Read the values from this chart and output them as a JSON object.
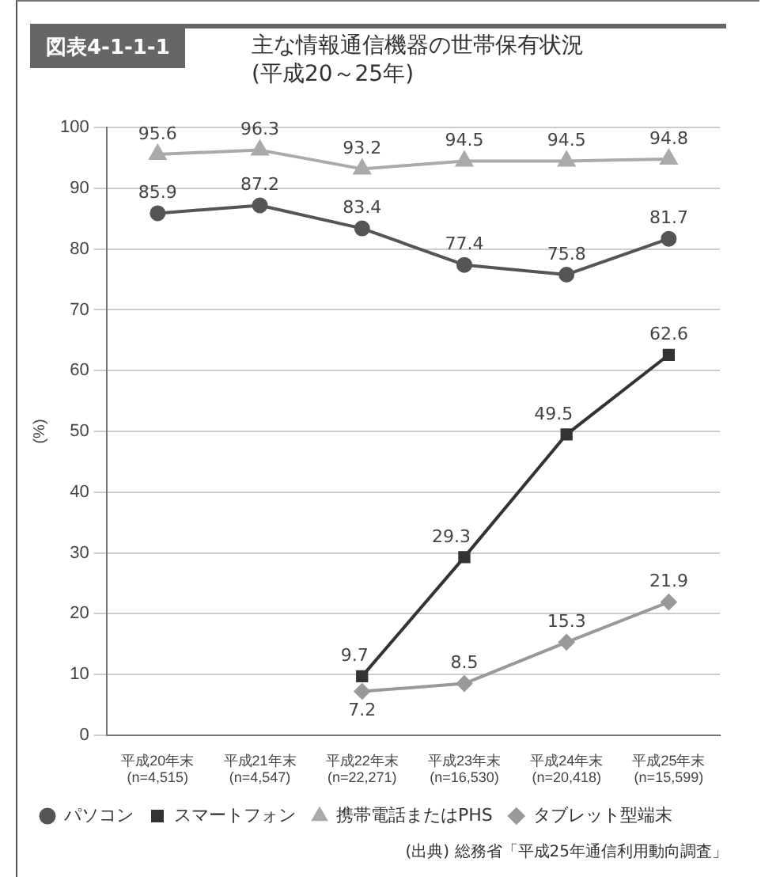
{
  "chart_data": {
    "type": "line",
    "title": "主な情報通信機器の世帯保有状況",
    "subtitle": "(平成20～25年)",
    "ylabel": "(%)",
    "annotations": [
      "図表4-1-1-1",
      "(出典) 総務省「平成25年通信利用動向調査」"
    ],
    "categories": [
      "平成20年末\n(n=4,515)",
      "平成21年末\n(n=4,547)",
      "平成22年末\n(n=22,271)",
      "平成23年末\n(n=16,530)",
      "平成24年末\n(n=20,418)",
      "平成25年末\n(n=15,599)"
    ],
    "series": [
      {
        "name": "パソコン",
        "color": "#555555",
        "marker": "circle",
        "values": [
          85.9,
          87.2,
          83.4,
          77.4,
          75.8,
          81.7
        ]
      },
      {
        "name": "スマートフォン",
        "color": "#333333",
        "marker": "square",
        "values": [
          null,
          null,
          9.7,
          29.3,
          49.5,
          62.6
        ]
      },
      {
        "name": "携帯電話またはPHS",
        "color": "#aaaaaa",
        "marker": "triangle",
        "values": [
          95.6,
          96.3,
          93.2,
          94.5,
          94.5,
          94.8
        ]
      },
      {
        "name": "タブレット型端末",
        "color": "#999999",
        "marker": "diamond",
        "values": [
          null,
          null,
          7.2,
          8.5,
          15.3,
          21.9
        ]
      }
    ],
    "ylim": [
      0,
      100
    ],
    "yticks": [
      0,
      10,
      20,
      30,
      40,
      50,
      60,
      70,
      80,
      90,
      100
    ],
    "grid": "y",
    "legend": "bottom",
    "data_labels": true,
    "line_style": "solid"
  }
}
